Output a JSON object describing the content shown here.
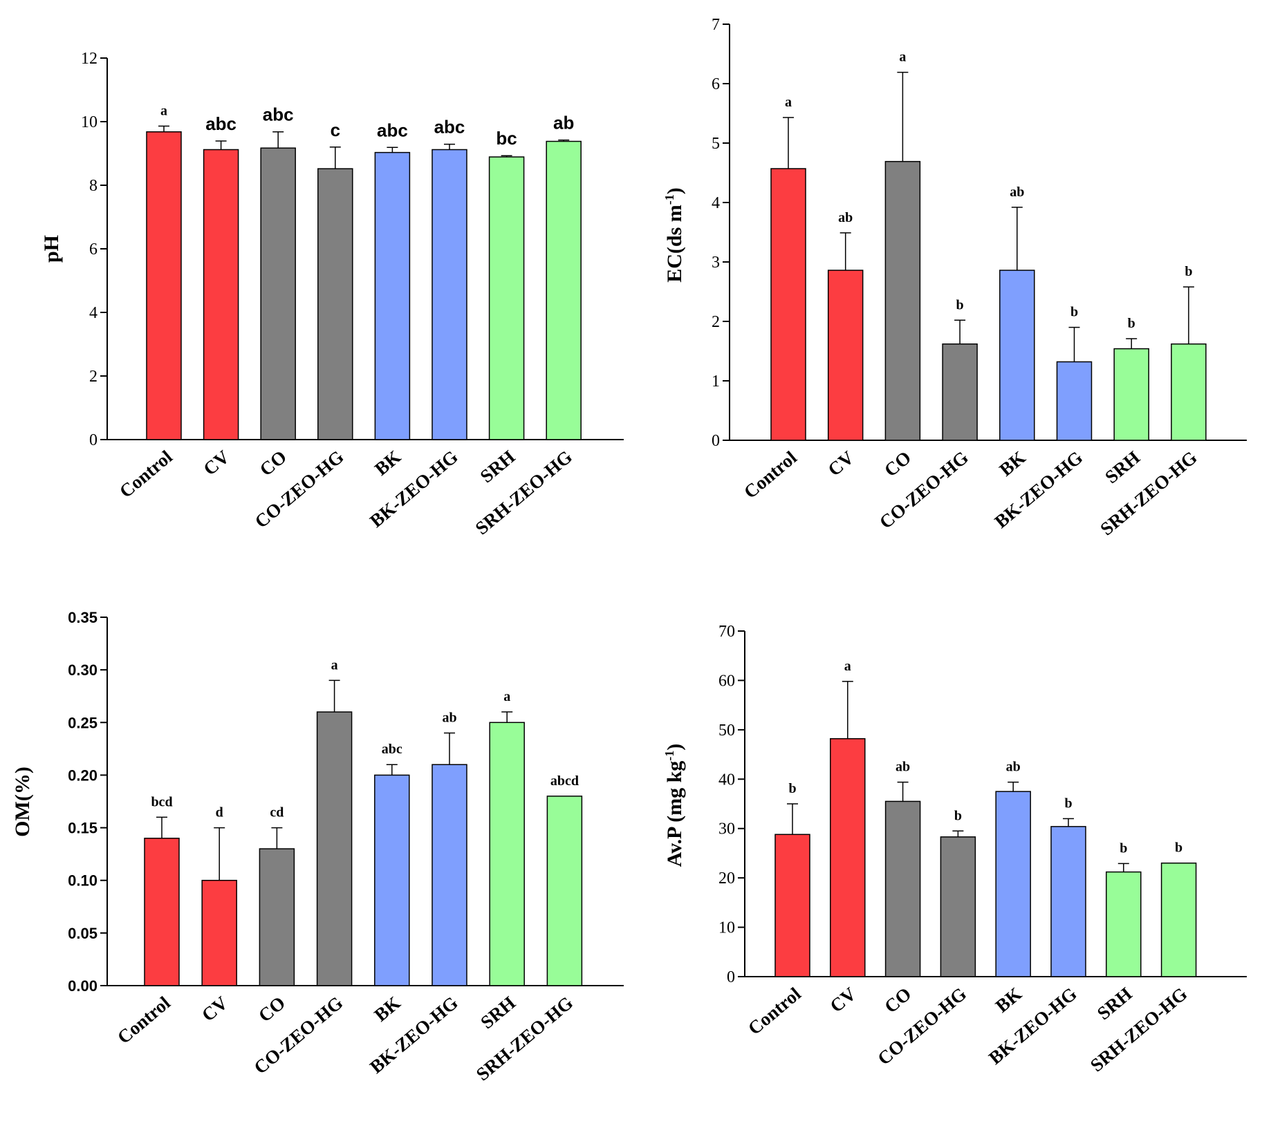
{
  "colors": {
    "red": "#fc3d41",
    "gray": "#808080",
    "blue": "#7f9ffe",
    "green": "#98fd98",
    "outline": "#000000"
  },
  "chart_data": [
    {
      "type": "bar",
      "panel": "top-left",
      "title": "",
      "xlabel": "",
      "ylabel": "pH",
      "ylim": [
        0,
        12
      ],
      "yticks": [
        "0",
        "2",
        "4",
        "6",
        "8",
        "10",
        "12"
      ],
      "categories": [
        "Control",
        "CV",
        "CO",
        "CO-ZEO-HG",
        "BK",
        "BK-ZEO-HG",
        "SRH",
        "SRH-ZEO-HG"
      ],
      "values": [
        9.68,
        9.12,
        9.17,
        8.52,
        9.03,
        9.12,
        8.89,
        9.38
      ],
      "errors": [
        0.18,
        0.27,
        0.51,
        0.68,
        0.16,
        0.17,
        0.04,
        0.04
      ],
      "letters": [
        "a",
        "abc",
        "abc",
        "c",
        "abc",
        "abc",
        "bc",
        "ab"
      ],
      "bar_colors": [
        "red",
        "red",
        "gray",
        "gray",
        "blue",
        "blue",
        "green",
        "green"
      ]
    },
    {
      "type": "bar",
      "panel": "top-right",
      "title": "",
      "xlabel": "",
      "ylabel": "EC(ds m",
      "ylabel_sup": "-1",
      "ylabel_end": ")",
      "ylim": [
        0,
        7
      ],
      "yticks": [
        "0",
        "1",
        "2",
        "3",
        "4",
        "5",
        "6",
        "7"
      ],
      "categories": [
        "Control",
        "CV",
        "CO",
        "CO-ZEO-HG",
        "BK",
        "BK-ZEO-HG",
        "SRH",
        "SRH-ZEO-HG"
      ],
      "values": [
        4.57,
        2.86,
        4.69,
        1.62,
        2.86,
        1.32,
        1.54,
        1.62
      ],
      "errors": [
        0.86,
        0.63,
        1.5,
        0.4,
        1.06,
        0.58,
        0.17,
        0.96
      ],
      "letters": [
        "a",
        "ab",
        "a",
        "b",
        "ab",
        "b",
        "b",
        "b"
      ],
      "bar_colors": [
        "red",
        "red",
        "gray",
        "gray",
        "blue",
        "blue",
        "green",
        "green"
      ]
    },
    {
      "type": "bar",
      "panel": "bottom-left",
      "title": "",
      "xlabel": "",
      "ylabel": "OM(%)",
      "ylim": [
        0,
        0.35
      ],
      "yticks": [
        "0.00",
        "0.05",
        "0.10",
        "0.15",
        "0.20",
        "0.25",
        "0.30",
        "0.35"
      ],
      "categories": [
        "Control",
        "CV",
        "CO",
        "CO-ZEO-HG",
        "BK",
        "BK-ZEO-HG",
        "SRH",
        "SRH-ZEO-HG"
      ],
      "values": [
        0.14,
        0.1,
        0.13,
        0.26,
        0.2,
        0.21,
        0.25,
        0.18
      ],
      "errors": [
        0.02,
        0.05,
        0.02,
        0.03,
        0.01,
        0.03,
        0.01,
        0
      ],
      "letters": [
        "bcd",
        "d",
        "cd",
        "a",
        "abc",
        "ab",
        "a",
        "abcd"
      ],
      "bar_colors": [
        "red",
        "red",
        "gray",
        "gray",
        "blue",
        "blue",
        "green",
        "green"
      ]
    },
    {
      "type": "bar",
      "panel": "bottom-right",
      "title": "",
      "xlabel": "",
      "ylabel": "Av.P (mg kg",
      "ylabel_sup": "-1",
      "ylabel_end": ")",
      "ylim": [
        0,
        70
      ],
      "yticks": [
        "0",
        "10",
        "20",
        "30",
        "40",
        "50",
        "60",
        "70"
      ],
      "categories": [
        "Control",
        "CV",
        "CO",
        "CO-ZEO-HG",
        "BK",
        "BK-ZEO-HG",
        "SRH",
        "SRH-ZEO-HG"
      ],
      "values": [
        28.8,
        48.2,
        35.5,
        28.3,
        37.5,
        30.4,
        21.2,
        23
      ],
      "errors": [
        6.2,
        11.6,
        3.9,
        1.2,
        1.9,
        1.6,
        1.7,
        0
      ],
      "letters": [
        "b",
        "a",
        "ab",
        "b",
        "ab",
        "b",
        "b",
        "b"
      ],
      "bar_colors": [
        "red",
        "red",
        "gray",
        "gray",
        "blue",
        "blue",
        "green",
        "green"
      ]
    }
  ]
}
